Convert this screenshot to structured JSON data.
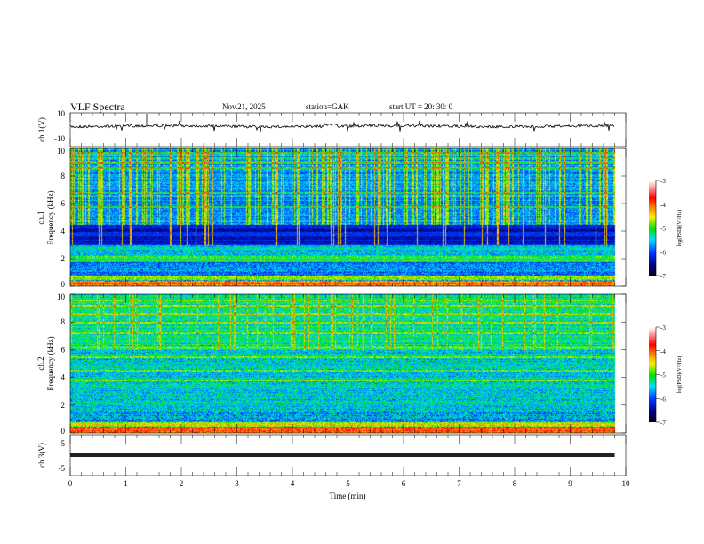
{
  "header": {
    "title": "VLF  Spectra",
    "date": "Nov.21, 2025",
    "station": "station=GAK",
    "start_ut": "start  UT  =   20: 30: 0"
  },
  "chart_data": [
    {
      "type": "line",
      "ylabel": "ch.1(V)",
      "ylim": [
        -10,
        10
      ],
      "yticks": [
        "10",
        "-10"
      ],
      "description_values": {
        "baseline": 0
      },
      "xlim": [
        0,
        10
      ]
    },
    {
      "type": "heatmap",
      "ylabel_line1": "ch.1",
      "ylabel_line2": "Frequency  (kHz)",
      "ylim": [
        0,
        10
      ],
      "yticks": [
        "0",
        "2",
        "4",
        "6",
        "8",
        "10"
      ],
      "xlim": [
        0,
        10
      ],
      "data_end_min": 9.8,
      "colorbar": {
        "label": "log(PSD)(V²/Hz)",
        "range": [
          -7,
          -3
        ],
        "ticks": [
          "-3",
          "-4",
          "-5",
          "-6",
          "-7"
        ]
      }
    },
    {
      "type": "heatmap",
      "ylabel_line1": "ch.2",
      "ylabel_line2": "Frequency  (kHz)",
      "ylim": [
        0,
        10
      ],
      "yticks": [
        "0",
        "2",
        "4",
        "6",
        "8",
        "10"
      ],
      "xlim": [
        0,
        10
      ],
      "data_end_min": 9.8,
      "colorbar": {
        "label": "log(PSD)(V²/Hz)",
        "range": [
          -7,
          -3
        ],
        "ticks": [
          "-3",
          "-4",
          "-5",
          "-6",
          "-7"
        ]
      }
    },
    {
      "type": "line",
      "ylabel": "ch.3(V)",
      "ylim": [
        -5,
        5
      ],
      "yticks": [
        "5",
        "-5"
      ],
      "description_values": {
        "baseline": 0
      },
      "xlim": [
        0,
        10
      ]
    }
  ],
  "xaxis": {
    "label": "Time  (min)",
    "ticks": [
      "0",
      "1",
      "2",
      "3",
      "4",
      "5",
      "6",
      "7",
      "8",
      "9",
      "10"
    ]
  },
  "colors": {
    "trace": "#000000",
    "axis": "#000000"
  }
}
